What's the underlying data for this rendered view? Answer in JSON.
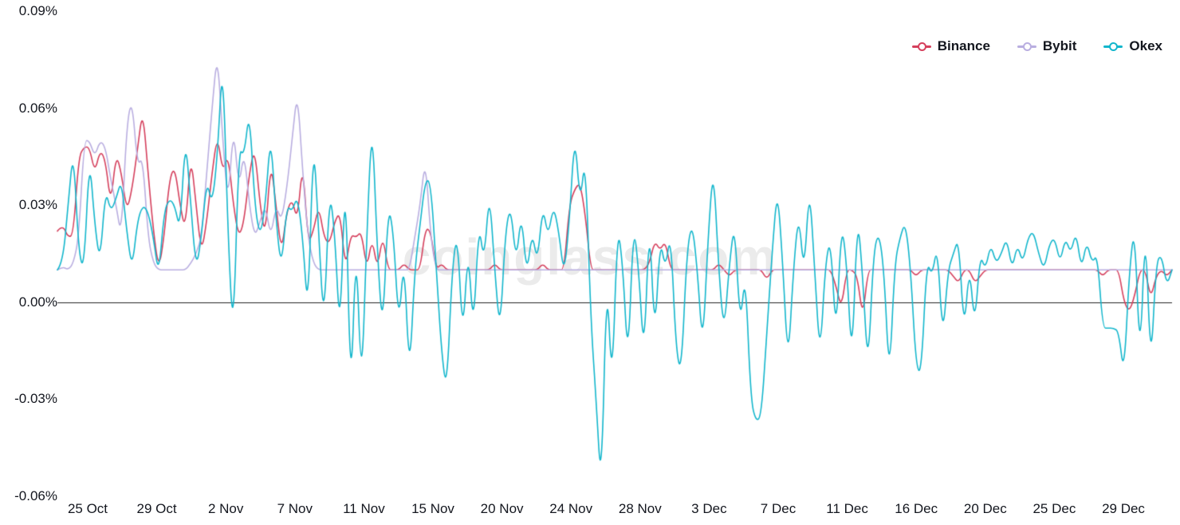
{
  "chart_data": {
    "type": "line",
    "title": "",
    "xlabel": "",
    "ylabel": "",
    "unit": "%",
    "ylim": [
      -0.06,
      0.09
    ],
    "grid": false,
    "zero_line": true,
    "legend_position": "top-right",
    "watermark": "coinglass.com",
    "y_ticks": [
      "0.09%",
      "0.06%",
      "0.03%",
      "0.00%",
      "-0.03%",
      "-0.06%"
    ],
    "y_tick_values": [
      0.09,
      0.06,
      0.03,
      0.0,
      -0.03,
      -0.06
    ],
    "x_ticks": [
      "25 Oct",
      "29 Oct",
      "2 Nov",
      "7 Nov",
      "11 Nov",
      "15 Nov",
      "20 Nov",
      "24 Nov",
      "28 Nov",
      "3 Dec",
      "7 Dec",
      "11 Dec",
      "16 Dec",
      "20 Dec",
      "25 Dec",
      "29 Dec"
    ],
    "points_per_day": 3,
    "series": [
      {
        "name": "Binance",
        "color": "#d5405d",
        "values": [
          0.022,
          0.024,
          0.02,
          0.021,
          0.045,
          0.048,
          0.048,
          0.04,
          0.047,
          0.044,
          0.03,
          0.046,
          0.04,
          0.028,
          0.035,
          0.047,
          0.06,
          0.04,
          0.022,
          0.01,
          0.02,
          0.038,
          0.042,
          0.03,
          0.022,
          0.046,
          0.03,
          0.015,
          0.025,
          0.04,
          0.052,
          0.04,
          0.046,
          0.03,
          0.02,
          0.025,
          0.04,
          0.048,
          0.03,
          0.02,
          0.044,
          0.03,
          0.015,
          0.028,
          0.032,
          0.025,
          0.044,
          0.018,
          0.022,
          0.03,
          0.02,
          0.018,
          0.025,
          0.028,
          0.01,
          0.021,
          0.02,
          0.022,
          0.01,
          0.02,
          0.01,
          0.021,
          0.01,
          0.01,
          0.01,
          0.012,
          0.01,
          0.01,
          0.01,
          0.023,
          0.022,
          0.01,
          0.012,
          0.01,
          0.01,
          0.01,
          0.01,
          0.01,
          0.01,
          0.01,
          0.01,
          0.01,
          0.012,
          0.01,
          0.01,
          0.01,
          0.01,
          0.01,
          0.01,
          0.01,
          0.01,
          0.012,
          0.01,
          0.01,
          0.01,
          0.01,
          0.03,
          0.035,
          0.037,
          0.027,
          0.01,
          0.01,
          0.01,
          0.01,
          0.01,
          0.01,
          0.01,
          0.01,
          0.01,
          0.01,
          0.01,
          0.012,
          0.019,
          0.016,
          0.019,
          0.01,
          0.01,
          0.01,
          0.01,
          0.01,
          0.01,
          0.01,
          0.01,
          0.01,
          0.012,
          0.01,
          0.008,
          0.01,
          0.01,
          0.01,
          0.01,
          0.01,
          0.01,
          0.007,
          0.01,
          0.01,
          0.01,
          0.01,
          0.01,
          0.01,
          0.01,
          0.01,
          0.01,
          0.01,
          0.01,
          0.01,
          0.005,
          -0.002,
          0.01,
          0.01,
          0.008,
          -0.005,
          0.01,
          0.01,
          0.01,
          0.01,
          0.01,
          0.01,
          0.01,
          0.01,
          0.01,
          0.008,
          0.01,
          0.01,
          0.01,
          0.01,
          0.01,
          0.01,
          0.008,
          0.006,
          0.01,
          0.01,
          0.006,
          0.008,
          0.01,
          0.01,
          0.01,
          0.01,
          0.01,
          0.01,
          0.01,
          0.01,
          0.01,
          0.01,
          0.01,
          0.01,
          0.01,
          0.01,
          0.01,
          0.01,
          0.01,
          0.01,
          0.01,
          0.01,
          0.01,
          0.01,
          0.008,
          0.01,
          0.01,
          0.01,
          0.0,
          -0.003,
          0.002,
          0.01,
          0.01,
          0.001,
          0.008,
          0.01,
          0.008,
          0.01
        ]
      },
      {
        "name": "Bybit",
        "color": "#b9aee0",
        "values": [
          0.01,
          0.011,
          0.01,
          0.012,
          0.02,
          0.05,
          0.05,
          0.045,
          0.05,
          0.048,
          0.038,
          0.03,
          0.02,
          0.055,
          0.063,
          0.042,
          0.045,
          0.02,
          0.012,
          0.01,
          0.01,
          0.01,
          0.01,
          0.01,
          0.01,
          0.012,
          0.015,
          0.02,
          0.04,
          0.06,
          0.078,
          0.05,
          0.03,
          0.055,
          0.035,
          0.047,
          0.03,
          0.02,
          0.025,
          0.03,
          0.02,
          0.03,
          0.025,
          0.035,
          0.05,
          0.066,
          0.04,
          0.02,
          0.012,
          0.01,
          0.01,
          0.01,
          0.01,
          0.01,
          0.01,
          0.01,
          0.01,
          0.01,
          0.01,
          0.01,
          0.01,
          0.01,
          0.01,
          0.01,
          0.01,
          0.01,
          0.01,
          0.02,
          0.03,
          0.045,
          0.02,
          0.01,
          0.01,
          0.01,
          0.01,
          0.01,
          0.01,
          0.01,
          0.01,
          0.01,
          0.01,
          0.01,
          0.01,
          0.01,
          0.01,
          0.01,
          0.01,
          0.01,
          0.01,
          0.01,
          0.01,
          0.01,
          0.01,
          0.01,
          0.01,
          0.01,
          0.01,
          0.01,
          0.01,
          0.01,
          0.01,
          0.01,
          0.01,
          0.01,
          0.01,
          0.01,
          0.01,
          0.01,
          0.01,
          0.01,
          0.01,
          0.01,
          0.01,
          0.01,
          0.01,
          0.01,
          0.01,
          0.01,
          0.01,
          0.01,
          0.01,
          0.01,
          0.01,
          0.01,
          0.01,
          0.01,
          0.01,
          0.01,
          0.01,
          0.01,
          0.01,
          0.01,
          0.01,
          0.01,
          0.01,
          0.01,
          0.01,
          0.01,
          0.01,
          0.01,
          0.01,
          0.01,
          0.01,
          0.01,
          0.01,
          0.01,
          0.01,
          0.01,
          0.01,
          0.01,
          0.01,
          0.01,
          0.01,
          0.01,
          0.01,
          0.01,
          0.01,
          0.01,
          0.01,
          0.01,
          0.01,
          0.01,
          0.01,
          0.01,
          0.01,
          0.01,
          0.01,
          0.01,
          0.01,
          0.01,
          0.01,
          0.01,
          0.01,
          0.01,
          0.01,
          0.01,
          0.01,
          0.01,
          0.01,
          0.01,
          0.01,
          0.01,
          0.01,
          0.01,
          0.01,
          0.01,
          0.01,
          0.01,
          0.01,
          0.01,
          0.01,
          0.01,
          0.01,
          0.01,
          0.01,
          0.01,
          0.01,
          0.01,
          0.01,
          0.01,
          0.01,
          0.01,
          0.01,
          0.01,
          0.01,
          0.01,
          0.01,
          0.01,
          0.01,
          0.01
        ]
      },
      {
        "name": "Okex",
        "color": "#13b6cc",
        "values": [
          0.01,
          0.012,
          0.03,
          0.048,
          0.015,
          0.01,
          0.046,
          0.024,
          0.012,
          0.035,
          0.028,
          0.032,
          0.038,
          0.022,
          0.01,
          0.025,
          0.03,
          0.028,
          0.02,
          0.008,
          0.028,
          0.032,
          0.03,
          0.022,
          0.052,
          0.03,
          0.01,
          0.02,
          0.038,
          0.03,
          0.045,
          0.077,
          0.02,
          -0.012,
          0.048,
          0.045,
          0.06,
          0.03,
          0.02,
          0.03,
          0.053,
          0.025,
          0.01,
          0.03,
          0.028,
          0.033,
          0.02,
          -0.005,
          0.053,
          0.02,
          -0.008,
          0.035,
          0.022,
          -0.012,
          0.044,
          -0.033,
          0.021,
          -0.029,
          0.02,
          0.058,
          0.015,
          -0.01,
          0.03,
          0.022,
          -0.008,
          0.015,
          -0.024,
          0.01,
          0.024,
          0.038,
          0.037,
          0.012,
          -0.015,
          -0.028,
          0.01,
          0.022,
          -0.012,
          0.018,
          -0.01,
          0.025,
          0.012,
          0.035,
          0.01,
          -0.01,
          0.022,
          0.03,
          0.012,
          0.028,
          0.008,
          0.022,
          0.012,
          0.03,
          0.02,
          0.03,
          0.022,
          0.008,
          0.025,
          0.053,
          0.03,
          0.046,
          -0.005,
          -0.03,
          -0.059,
          0.01,
          -0.028,
          0.024,
          0.012,
          -0.02,
          0.025,
          0.01,
          -0.018,
          0.027,
          -0.012,
          0.02,
          0.01,
          0.022,
          -0.015,
          -0.022,
          0.015,
          0.025,
          0.01,
          -0.015,
          0.02,
          0.043,
          0.01,
          -0.01,
          0.012,
          0.025,
          -0.008,
          0.01,
          -0.03,
          -0.037,
          -0.035,
          -0.01,
          0.015,
          0.036,
          0.012,
          -0.02,
          0.01,
          0.028,
          0.008,
          0.037,
          0.01,
          -0.018,
          0.012,
          0.02,
          -0.012,
          0.025,
          0.012,
          -0.02,
          0.028,
          0.008,
          -0.022,
          0.015,
          0.022,
          0.01,
          -0.025,
          0.012,
          0.02,
          0.025,
          0.01,
          -0.02,
          -0.022,
          0.013,
          0.008,
          0.018,
          -0.012,
          0.01,
          0.015,
          0.02,
          -0.01,
          0.012,
          -0.008,
          0.015,
          0.01,
          0.018,
          0.012,
          0.015,
          0.02,
          0.01,
          0.018,
          0.012,
          0.02,
          0.022,
          0.015,
          0.01,
          0.018,
          0.02,
          0.012,
          0.02,
          0.015,
          0.022,
          0.01,
          0.019,
          0.012,
          0.015,
          -0.008,
          -0.008,
          -0.008,
          -0.009,
          -0.023,
          0.01,
          0.024,
          -0.02,
          0.026,
          -0.022,
          0.012,
          0.015,
          0.005,
          0.01
        ]
      }
    ]
  }
}
